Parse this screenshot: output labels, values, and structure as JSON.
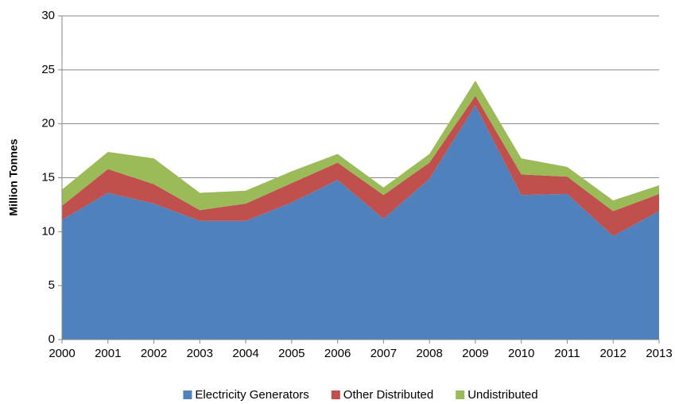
{
  "chart_data": {
    "type": "stacked_area",
    "y_label": "Million Tonnes",
    "x": [
      2000,
      2001,
      2002,
      2003,
      2004,
      2005,
      2006,
      2007,
      2008,
      2009,
      2010,
      2011,
      2012,
      2013
    ],
    "xlim": [
      2000,
      2013
    ],
    "xticks": [
      2000,
      2001,
      2002,
      2003,
      2004,
      2005,
      2006,
      2007,
      2008,
      2009,
      2010,
      2011,
      2012,
      2013
    ],
    "ylim": [
      0,
      30
    ],
    "yticks": [
      0,
      5,
      10,
      15,
      20,
      25,
      30
    ],
    "grid": true,
    "legend": "bottom",
    "series": [
      {
        "name": "Electricity Generators",
        "color": "#4f81bd",
        "values": [
          11.1,
          13.6,
          12.6,
          11.0,
          11.0,
          12.7,
          14.8,
          11.2,
          14.9,
          21.7,
          13.4,
          13.5,
          9.6,
          11.9
        ]
      },
      {
        "name": "Other Distributed",
        "color": "#c0504d",
        "values": [
          1.3,
          2.2,
          1.8,
          1.0,
          1.6,
          1.8,
          1.6,
          2.2,
          1.5,
          0.9,
          1.9,
          1.6,
          2.3,
          1.6
        ]
      },
      {
        "name": "Undistributed",
        "color": "#9bbb59",
        "values": [
          1.5,
          1.6,
          2.4,
          1.6,
          1.2,
          1.1,
          0.8,
          0.7,
          0.8,
          1.4,
          1.5,
          0.9,
          1.0,
          0.8
        ]
      }
    ]
  }
}
